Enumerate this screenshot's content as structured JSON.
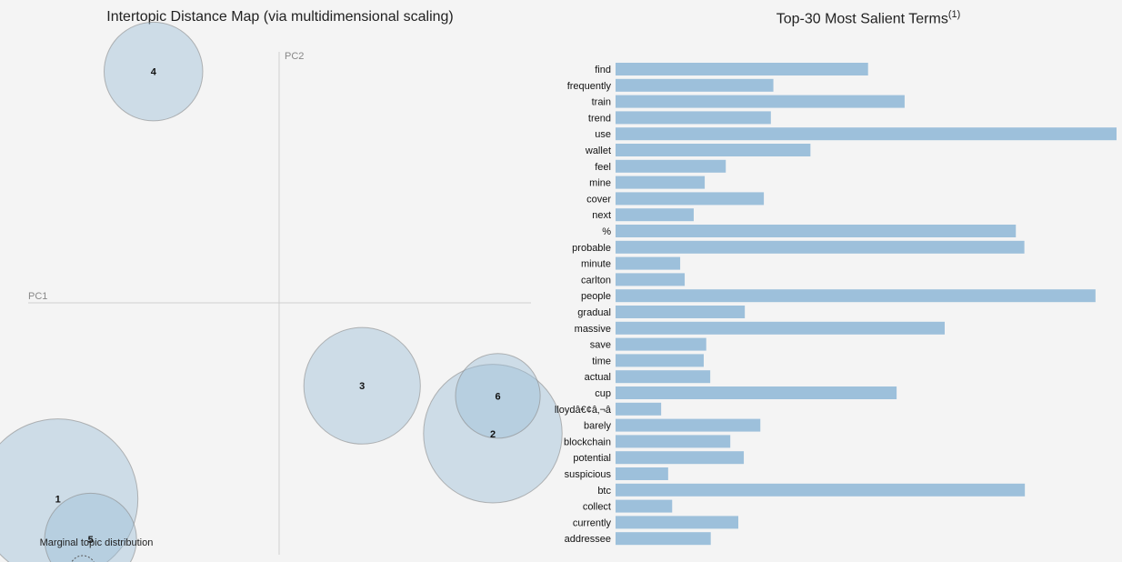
{
  "chart_data": [
    {
      "type": "scatter",
      "title": "Intertopic Distance Map (via multidimensional scaling)",
      "xlabel": "PC1",
      "ylabel": "PC2",
      "xlim": [
        -1,
        1
      ],
      "ylim": [
        -1,
        1
      ],
      "legend": "Marginal topic distribution",
      "topics": [
        {
          "label": "1",
          "x": -0.88,
          "y": -0.78,
          "size": 10
        },
        {
          "label": "2",
          "x": 0.85,
          "y": -0.52,
          "size": 7.5
        },
        {
          "label": "3",
          "x": 0.33,
          "y": -0.33,
          "size": 5.3
        },
        {
          "label": "4",
          "x": -0.5,
          "y": 0.92,
          "size": 3.8
        },
        {
          "label": "5",
          "x": -0.75,
          "y": -0.94,
          "size": 3.3
        },
        {
          "label": "6",
          "x": 0.87,
          "y": -0.37,
          "size": 2.8
        }
      ]
    },
    {
      "type": "bar",
      "orientation": "horizontal",
      "title": "Top-30 Most Salient Terms",
      "title_superscript": "(1)",
      "xlim": [
        0,
        100
      ],
      "categories": [
        "find",
        "frequently",
        "train",
        "trend",
        "use",
        "wallet",
        "feel",
        "mine",
        "cover",
        "next",
        "%",
        "probable",
        "minute",
        "carlton",
        "people",
        "gradual",
        "massive",
        "save",
        "time",
        "actual",
        "cup",
        "lloydâ€¢â‚¬â",
        "barely",
        "blockchain",
        "potential",
        "suspicious",
        "btc",
        "collect",
        "currently",
        "addressee"
      ],
      "values": [
        50.4,
        31.5,
        57.7,
        31.0,
        100.0,
        38.9,
        22.0,
        17.8,
        29.6,
        15.6,
        79.9,
        81.6,
        12.9,
        13.8,
        95.8,
        25.8,
        65.7,
        18.1,
        17.6,
        18.9,
        56.1,
        9.1,
        28.9,
        22.9,
        25.6,
        10.5,
        81.7,
        11.3,
        24.5,
        19.0
      ]
    }
  ]
}
